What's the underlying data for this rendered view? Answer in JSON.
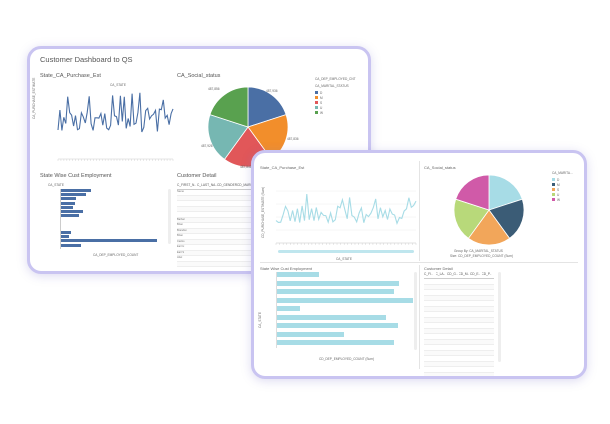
{
  "dashboard1": {
    "title": "Customer Dashboard to QS",
    "line_chart": {
      "title": "State_CA_Purchase_Est",
      "legend_label": "CA_STATE",
      "ylabel": "CA_PURCHASE_ESTIMATE",
      "color": "#4a6fa5"
    },
    "pie_chart": {
      "title": "CA_Social_status",
      "legend_title_1": "CA_DEP_EMPLOYED_CNT",
      "legend_title_2": "CA_MARITAL_STATUS",
      "legend_items": [
        "D",
        "M",
        "S",
        "U",
        "W"
      ],
      "slice_labels": [
        "487,856",
        "487,936",
        "487,836",
        "487,846",
        "487,926"
      ]
    },
    "bar_chart": {
      "title": "State Wise Cust Employment",
      "legend_label": "CA_STATE",
      "xlabel": "CA_DEP_EMPLOYED_COUNT",
      "color": "#4a6fa5"
    },
    "table": {
      "title": "Customer Detail",
      "columns": [
        "C_FIRST_N..",
        "C_LAST_NA..",
        "CD_GENDER",
        "CD_MARITAL"
      ],
      "first_names": [
        "Name",
        "",
        "",
        "",
        "",
        "Barbar",
        "Brian",
        "Brandon",
        "Brian",
        "Carlos",
        "Earl H",
        "Earl S",
        "Abel",
        "",
        "",
        "",
        "",
        "Amber",
        "Tami",
        "Bertie"
      ]
    }
  },
  "dashboard2": {
    "line_chart": {
      "title": "State_CA_Purchase_Est",
      "xlabel": "CA_STATE",
      "ylabel": "CD_PURCHASE_ESTIMATE (Sum)",
      "color": "#a7dce6"
    },
    "pie_chart": {
      "title": "CA_Social_status",
      "legend_title": "CA_MARITA...",
      "legend_items": [
        "D",
        "M",
        "S",
        "U",
        "W"
      ],
      "caption_1": "Group By: CA_MARITAL_STATUS",
      "caption_2": "Size: CD_DEP_EMPLOYED_COUNT (Sum)"
    },
    "bar_chart": {
      "title": "State Wise Cust Employment",
      "ylabel": "CA_STATE",
      "xlabel": "CD_DEP_EMPLOYED_COUNT (Sum)",
      "color": "#a7dce6"
    },
    "table": {
      "title": "Customer Detail",
      "columns": [
        "C_FI..",
        "C_LA..",
        "CD_G..",
        "CD_M..",
        "CD_E..",
        "CD_P.."
      ]
    }
  },
  "colors": {
    "window_border": "#c9c4f1",
    "pie1": [
      "#4a6fa5",
      "#f28e2b",
      "#e15759",
      "#76b7b2",
      "#59a14f"
    ],
    "pie2": [
      "#a7dce6",
      "#3b5c76",
      "#f2a65a",
      "#b8d97a",
      "#d05aa8"
    ]
  }
}
